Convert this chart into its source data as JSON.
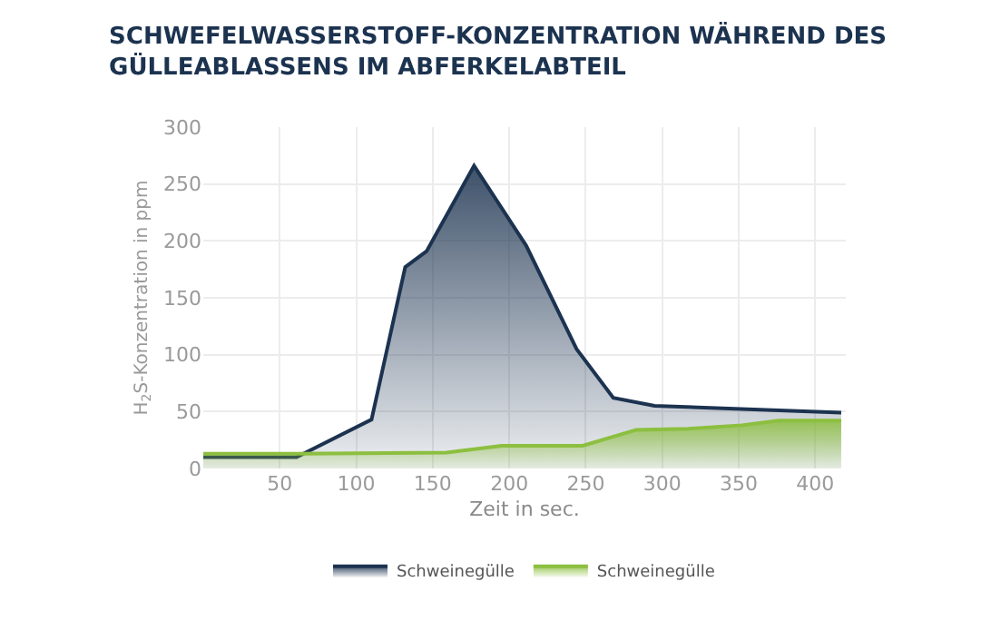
{
  "chart_data": {
    "type": "area",
    "title": "SCHWEFELWASSERSTOFF-KONZENTRATION WÄHREND DES\nGÜLLEABLASSENS IM ABFERKELABTEIL",
    "xlabel": "Zeit in sec.",
    "ylabel": "H$_{2}$S-Konzentration in ppm",
    "series": [
      {
        "name": "Schweinegülle",
        "color": "#1c3350",
        "x": [
          0,
          61,
          110,
          132,
          146,
          177,
          211,
          244,
          268,
          295,
          417
        ],
        "values": [
          10,
          10,
          43,
          177,
          191,
          266,
          196,
          105,
          62,
          55,
          49
        ]
      },
      {
        "name": "Schweinegülle",
        "color": "#8cbf3f",
        "x": [
          0,
          61,
          159,
          195,
          248,
          283,
          317,
          352,
          376,
          417
        ],
        "values": [
          13,
          13,
          14,
          20,
          20,
          34,
          35,
          38,
          42,
          42
        ]
      }
    ],
    "xlim": [
      0,
      420
    ],
    "ylim": [
      0,
      300
    ],
    "xticks": [
      50,
      100,
      150,
      200,
      250,
      300,
      350,
      400
    ],
    "yticks": [
      0,
      50,
      100,
      150,
      200,
      250,
      300
    ],
    "grid": true,
    "legend": "bottom"
  }
}
